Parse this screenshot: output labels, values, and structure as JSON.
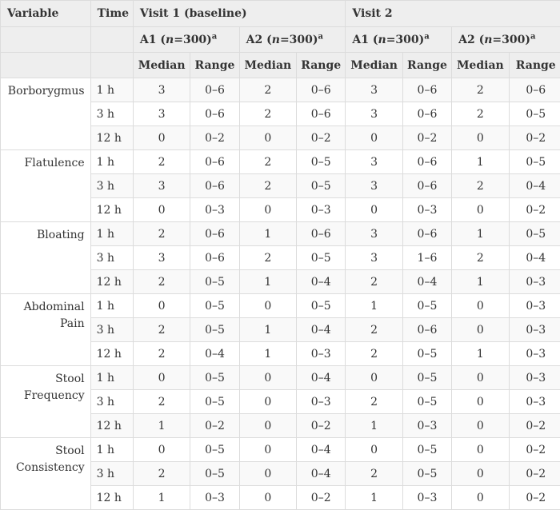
{
  "header": {
    "variable": "Variable",
    "time": "Time",
    "visit1": "Visit 1 (baseline)",
    "visit2": "Visit 2",
    "a1_prefix": "A1 (",
    "a2_prefix": "A2 (",
    "n_italic": "n",
    "n_value": "=300)",
    "footnote": "a",
    "median": "Median",
    "range": "Range"
  },
  "groups": [
    {
      "variable": "Borborygmus",
      "rows": [
        {
          "time": "1 h",
          "cells": [
            "3",
            "0–6",
            "2",
            "0–6",
            "3",
            "0–6",
            "2",
            "0–6"
          ]
        },
        {
          "time": "3 h",
          "cells": [
            "3",
            "0–6",
            "2",
            "0–6",
            "3",
            "0–6",
            "2",
            "0–5"
          ]
        },
        {
          "time": "12 h",
          "cells": [
            "0",
            "0–2",
            "0",
            "0–2",
            "0",
            "0–2",
            "0",
            "0–2"
          ]
        }
      ]
    },
    {
      "variable": "Flatulence",
      "rows": [
        {
          "time": "1 h",
          "cells": [
            "2",
            "0–6",
            "2",
            "0–5",
            "3",
            "0–6",
            "1",
            "0–5"
          ]
        },
        {
          "time": "3 h",
          "cells": [
            "3",
            "0–6",
            "2",
            "0–5",
            "3",
            "0–6",
            "2",
            "0–4"
          ]
        },
        {
          "time": "12 h",
          "cells": [
            "0",
            "0–3",
            "0",
            "0–3",
            "0",
            "0–3",
            "0",
            "0–2"
          ]
        }
      ]
    },
    {
      "variable": "Bloating",
      "rows": [
        {
          "time": "1 h",
          "cells": [
            "2",
            "0–6",
            "1",
            "0–6",
            "3",
            "0–6",
            "1",
            "0–5"
          ]
        },
        {
          "time": "3 h",
          "cells": [
            "3",
            "0–6",
            "2",
            "0–5",
            "3",
            "1–6",
            "2",
            "0–4"
          ]
        },
        {
          "time": "12 h",
          "cells": [
            "2",
            "0–5",
            "1",
            "0–4",
            "2",
            "0–4",
            "1",
            "0–3"
          ]
        }
      ]
    },
    {
      "variable": "Abdominal Pain",
      "rows": [
        {
          "time": "1 h",
          "cells": [
            "0",
            "0–5",
            "0",
            "0–5",
            "1",
            "0–5",
            "0",
            "0–3"
          ]
        },
        {
          "time": "3 h",
          "cells": [
            "2",
            "0–5",
            "1",
            "0–4",
            "2",
            "0–6",
            "0",
            "0–3"
          ]
        },
        {
          "time": "12 h",
          "cells": [
            "2",
            "0–4",
            "1",
            "0–3",
            "2",
            "0–5",
            "1",
            "0–3"
          ]
        }
      ]
    },
    {
      "variable": "Stool Frequency",
      "rows": [
        {
          "time": "1 h",
          "cells": [
            "0",
            "0–5",
            "0",
            "0–4",
            "0",
            "0–5",
            "0",
            "0–3"
          ]
        },
        {
          "time": "3 h",
          "cells": [
            "2",
            "0–5",
            "0",
            "0–3",
            "2",
            "0–5",
            "0",
            "0–3"
          ]
        },
        {
          "time": "12 h",
          "cells": [
            "1",
            "0–2",
            "0",
            "0–2",
            "1",
            "0–3",
            "0",
            "0–2"
          ]
        }
      ]
    },
    {
      "variable": "Stool Consistency",
      "rows": [
        {
          "time": "1 h",
          "cells": [
            "0",
            "0–5",
            "0",
            "0–4",
            "0",
            "0–5",
            "0",
            "0–2"
          ]
        },
        {
          "time": "3 h",
          "cells": [
            "2",
            "0–5",
            "0",
            "0–4",
            "2",
            "0–5",
            "0",
            "0–2"
          ]
        },
        {
          "time": "12 h",
          "cells": [
            "1",
            "0–3",
            "0",
            "0–2",
            "1",
            "0–3",
            "0",
            "0–2"
          ]
        }
      ]
    }
  ]
}
